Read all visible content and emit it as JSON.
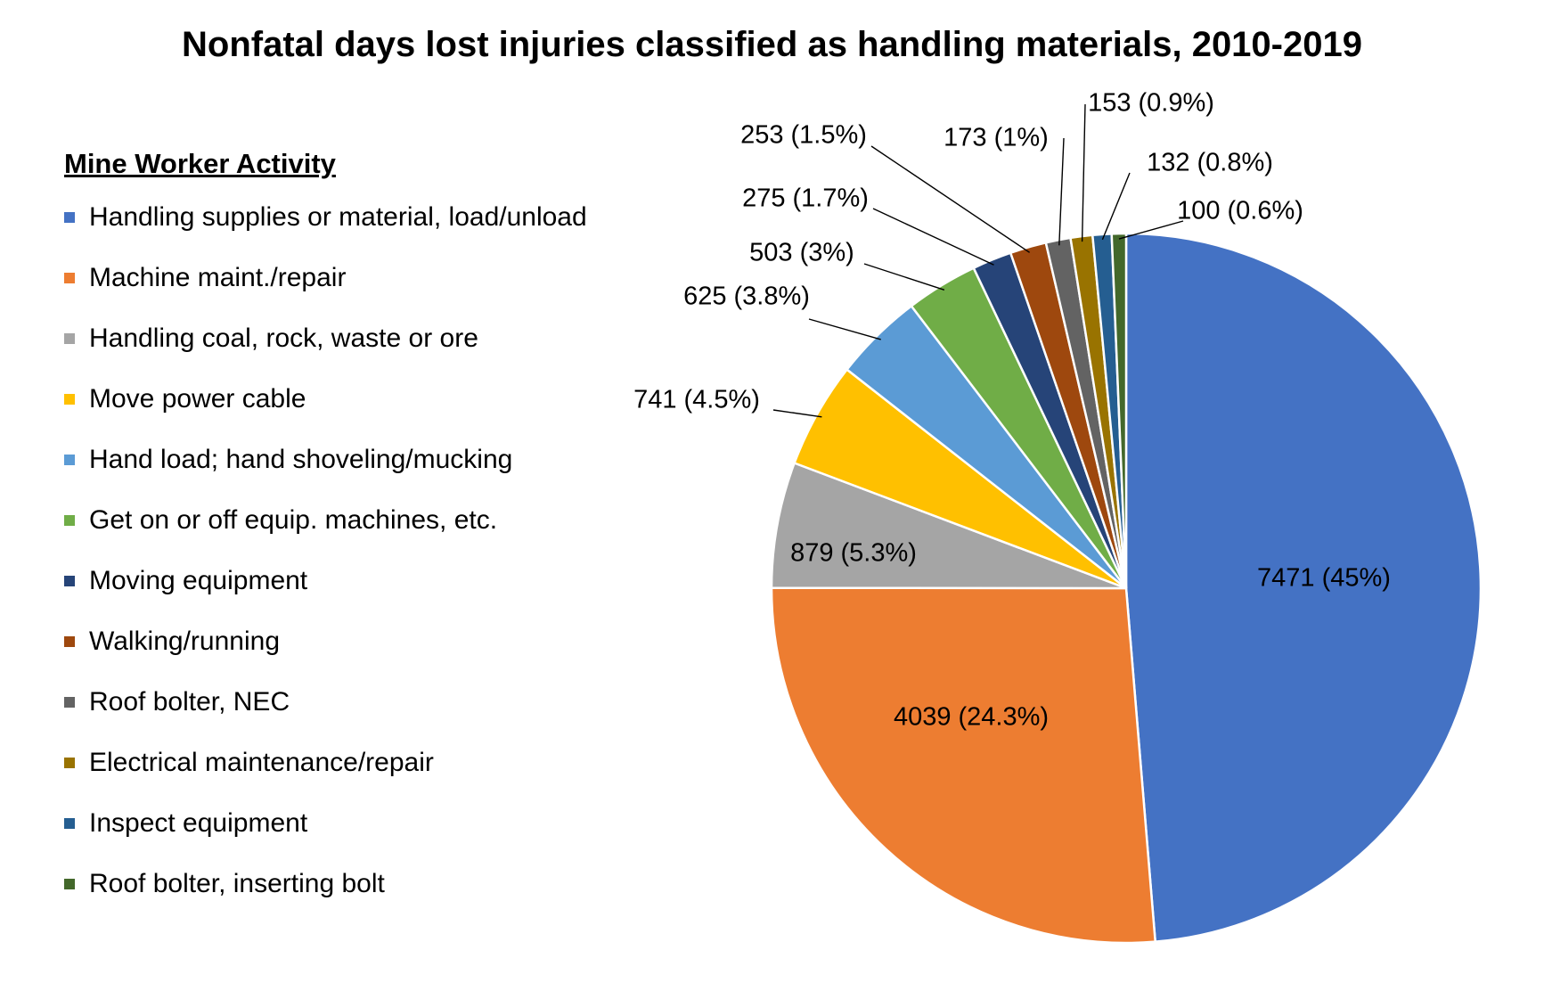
{
  "chart_data": {
    "type": "pie",
    "title": "Nonfatal days lost injuries classified as handling materials, 2010-2019",
    "legend_title": "Mine Worker Activity",
    "legend_placement": "left",
    "slices": [
      {
        "label": "Handling supplies or material, load/unload",
        "value": 7471,
        "data_label": "7471 (45%)",
        "color": "#4472C4"
      },
      {
        "label": "Machine maint./repair",
        "value": 4039,
        "data_label": "4039 (24.3%)",
        "color": "#ED7D31"
      },
      {
        "label": "Handling coal, rock, waste or ore",
        "value": 879,
        "data_label": "879 (5.3%)",
        "color": "#A5A5A5"
      },
      {
        "label": "Move power cable",
        "value": 741,
        "data_label": "741 (4.5%)",
        "color": "#FFC000"
      },
      {
        "label": "Hand load; hand shoveling/mucking",
        "value": 625,
        "data_label": "625 (3.8%)",
        "color": "#5B9BD5"
      },
      {
        "label": "Get on or off equip. machines, etc.",
        "value": 503,
        "data_label": "503 (3%)",
        "color": "#70AD47"
      },
      {
        "label": "Moving equipment",
        "value": 275,
        "data_label": "275 (1.7%)",
        "color": "#264478"
      },
      {
        "label": "Walking/running",
        "value": 253,
        "data_label": "253 (1.5%)",
        "color": "#9E480E"
      },
      {
        "label": "Roof bolter, NEC",
        "value": 173,
        "data_label": "173 (1%)",
        "color": "#636363"
      },
      {
        "label": "Electrical maintenance/repair",
        "value": 153,
        "data_label": "153 (0.9%)",
        "color": "#997300"
      },
      {
        "label": "Inspect equipment",
        "value": 132,
        "data_label": "132 (0.8%)",
        "color": "#255E91"
      },
      {
        "label": "Roof bolter, inserting bolt",
        "value": 100,
        "data_label": "100 (0.6%)",
        "color": "#43682B"
      }
    ]
  }
}
